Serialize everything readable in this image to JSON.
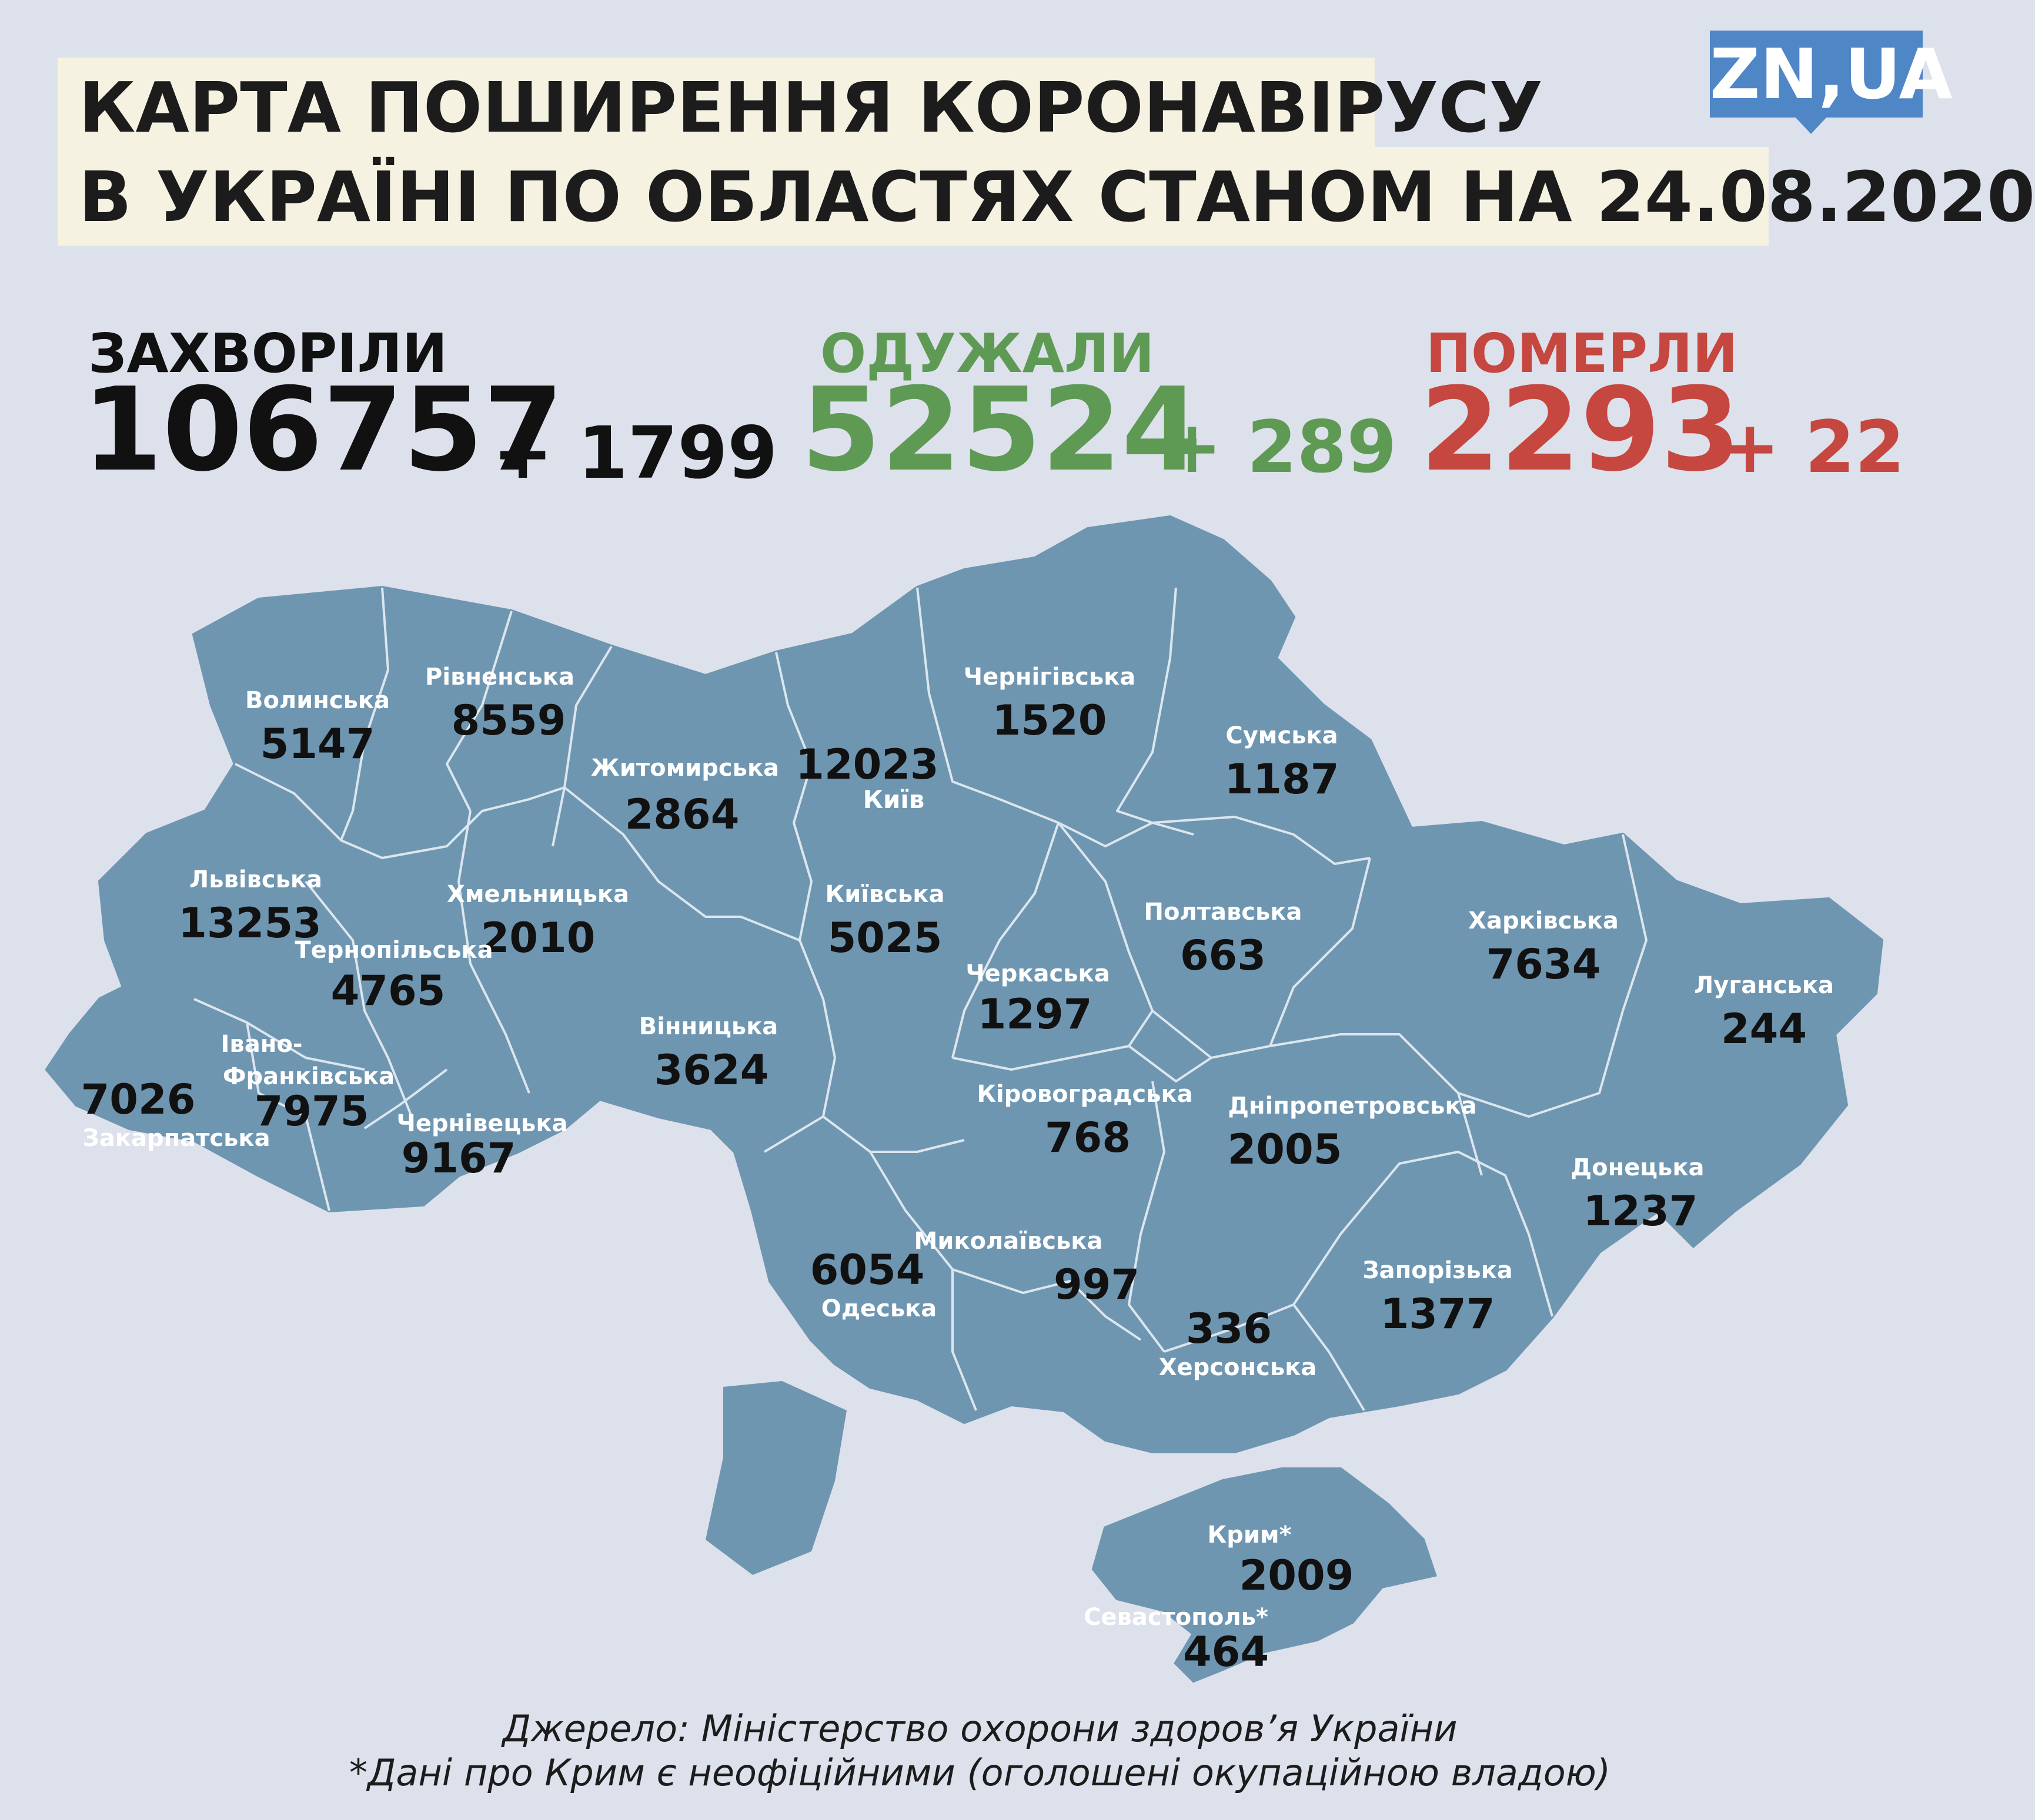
{
  "header": {
    "title_line_1": "КАРТА ПОШИРЕННЯ КОРОНАВІРУСУ",
    "title_line_2": "В УКРАЇНІ ПО ОБЛАСТЯХ СТАНОМ НА 24.08.2020",
    "logo": "ZN,UA"
  },
  "stats": {
    "infected": {
      "label": "ЗАХВОРІЛИ",
      "value": "106757",
      "delta": "+ 1799",
      "color": "#111111"
    },
    "recovered": {
      "label": "ОДУЖАЛИ",
      "value": "52524",
      "delta": "+ 289",
      "color": "#5f9a55"
    },
    "died": {
      "label": "ПОМЕРЛИ",
      "value": "2293",
      "delta": "+ 22",
      "color": "#c5473f"
    }
  },
  "colors": {
    "background": "#dde1ec",
    "land": "#6f96b1",
    "border": "#dce6ee",
    "region_label": "#ffffff",
    "region_value": "#111111",
    "title_bg": "#f5f2e2",
    "logo_bg": "#4f86c6"
  },
  "regions": [
    {
      "name": "Волинська",
      "value": "5147"
    },
    {
      "name": "Рівненська",
      "value": "8559"
    },
    {
      "name": "Житомирська",
      "value": "2864"
    },
    {
      "name": "Київ",
      "value": "12023"
    },
    {
      "name": "Чернігівська",
      "value": "1520"
    },
    {
      "name": "Сумська",
      "value": "1187"
    },
    {
      "name": "Львівська",
      "value": "13253"
    },
    {
      "name": "Хмельницька",
      "value": "2010"
    },
    {
      "name": "Тернопільська",
      "value": "4765"
    },
    {
      "name": "Київська",
      "value": "5025"
    },
    {
      "name": "Полтавська",
      "value": "663"
    },
    {
      "name": "Харківська",
      "value": "7634"
    },
    {
      "name": "Луганська",
      "value": "244"
    },
    {
      "name": "Черкаська",
      "value": "1297"
    },
    {
      "name": "Вінницька",
      "value": "3624"
    },
    {
      "name": "Івано-Франківська",
      "value": "7975"
    },
    {
      "name": "Закарпатська",
      "value": "7026"
    },
    {
      "name": "Чернівецька",
      "value": "9167"
    },
    {
      "name": "Кіровоградська",
      "value": "768"
    },
    {
      "name": "Дніпропетровська",
      "value": "2005"
    },
    {
      "name": "Донецька",
      "value": "1237"
    },
    {
      "name": "Одеська",
      "value": "6054"
    },
    {
      "name": "Миколаївська",
      "value": "997"
    },
    {
      "name": "Херсонська",
      "value": "336"
    },
    {
      "name": "Запорізька",
      "value": "1377"
    },
    {
      "name": "Крим*",
      "value": "2009"
    },
    {
      "name": "Севастополь*",
      "value": "464"
    }
  ],
  "footer": {
    "source": "Джерело: Міністерство охорони здоров’я України",
    "note": "*Дані про Крим є неофіційними (оголошені окупаційною владою)"
  }
}
